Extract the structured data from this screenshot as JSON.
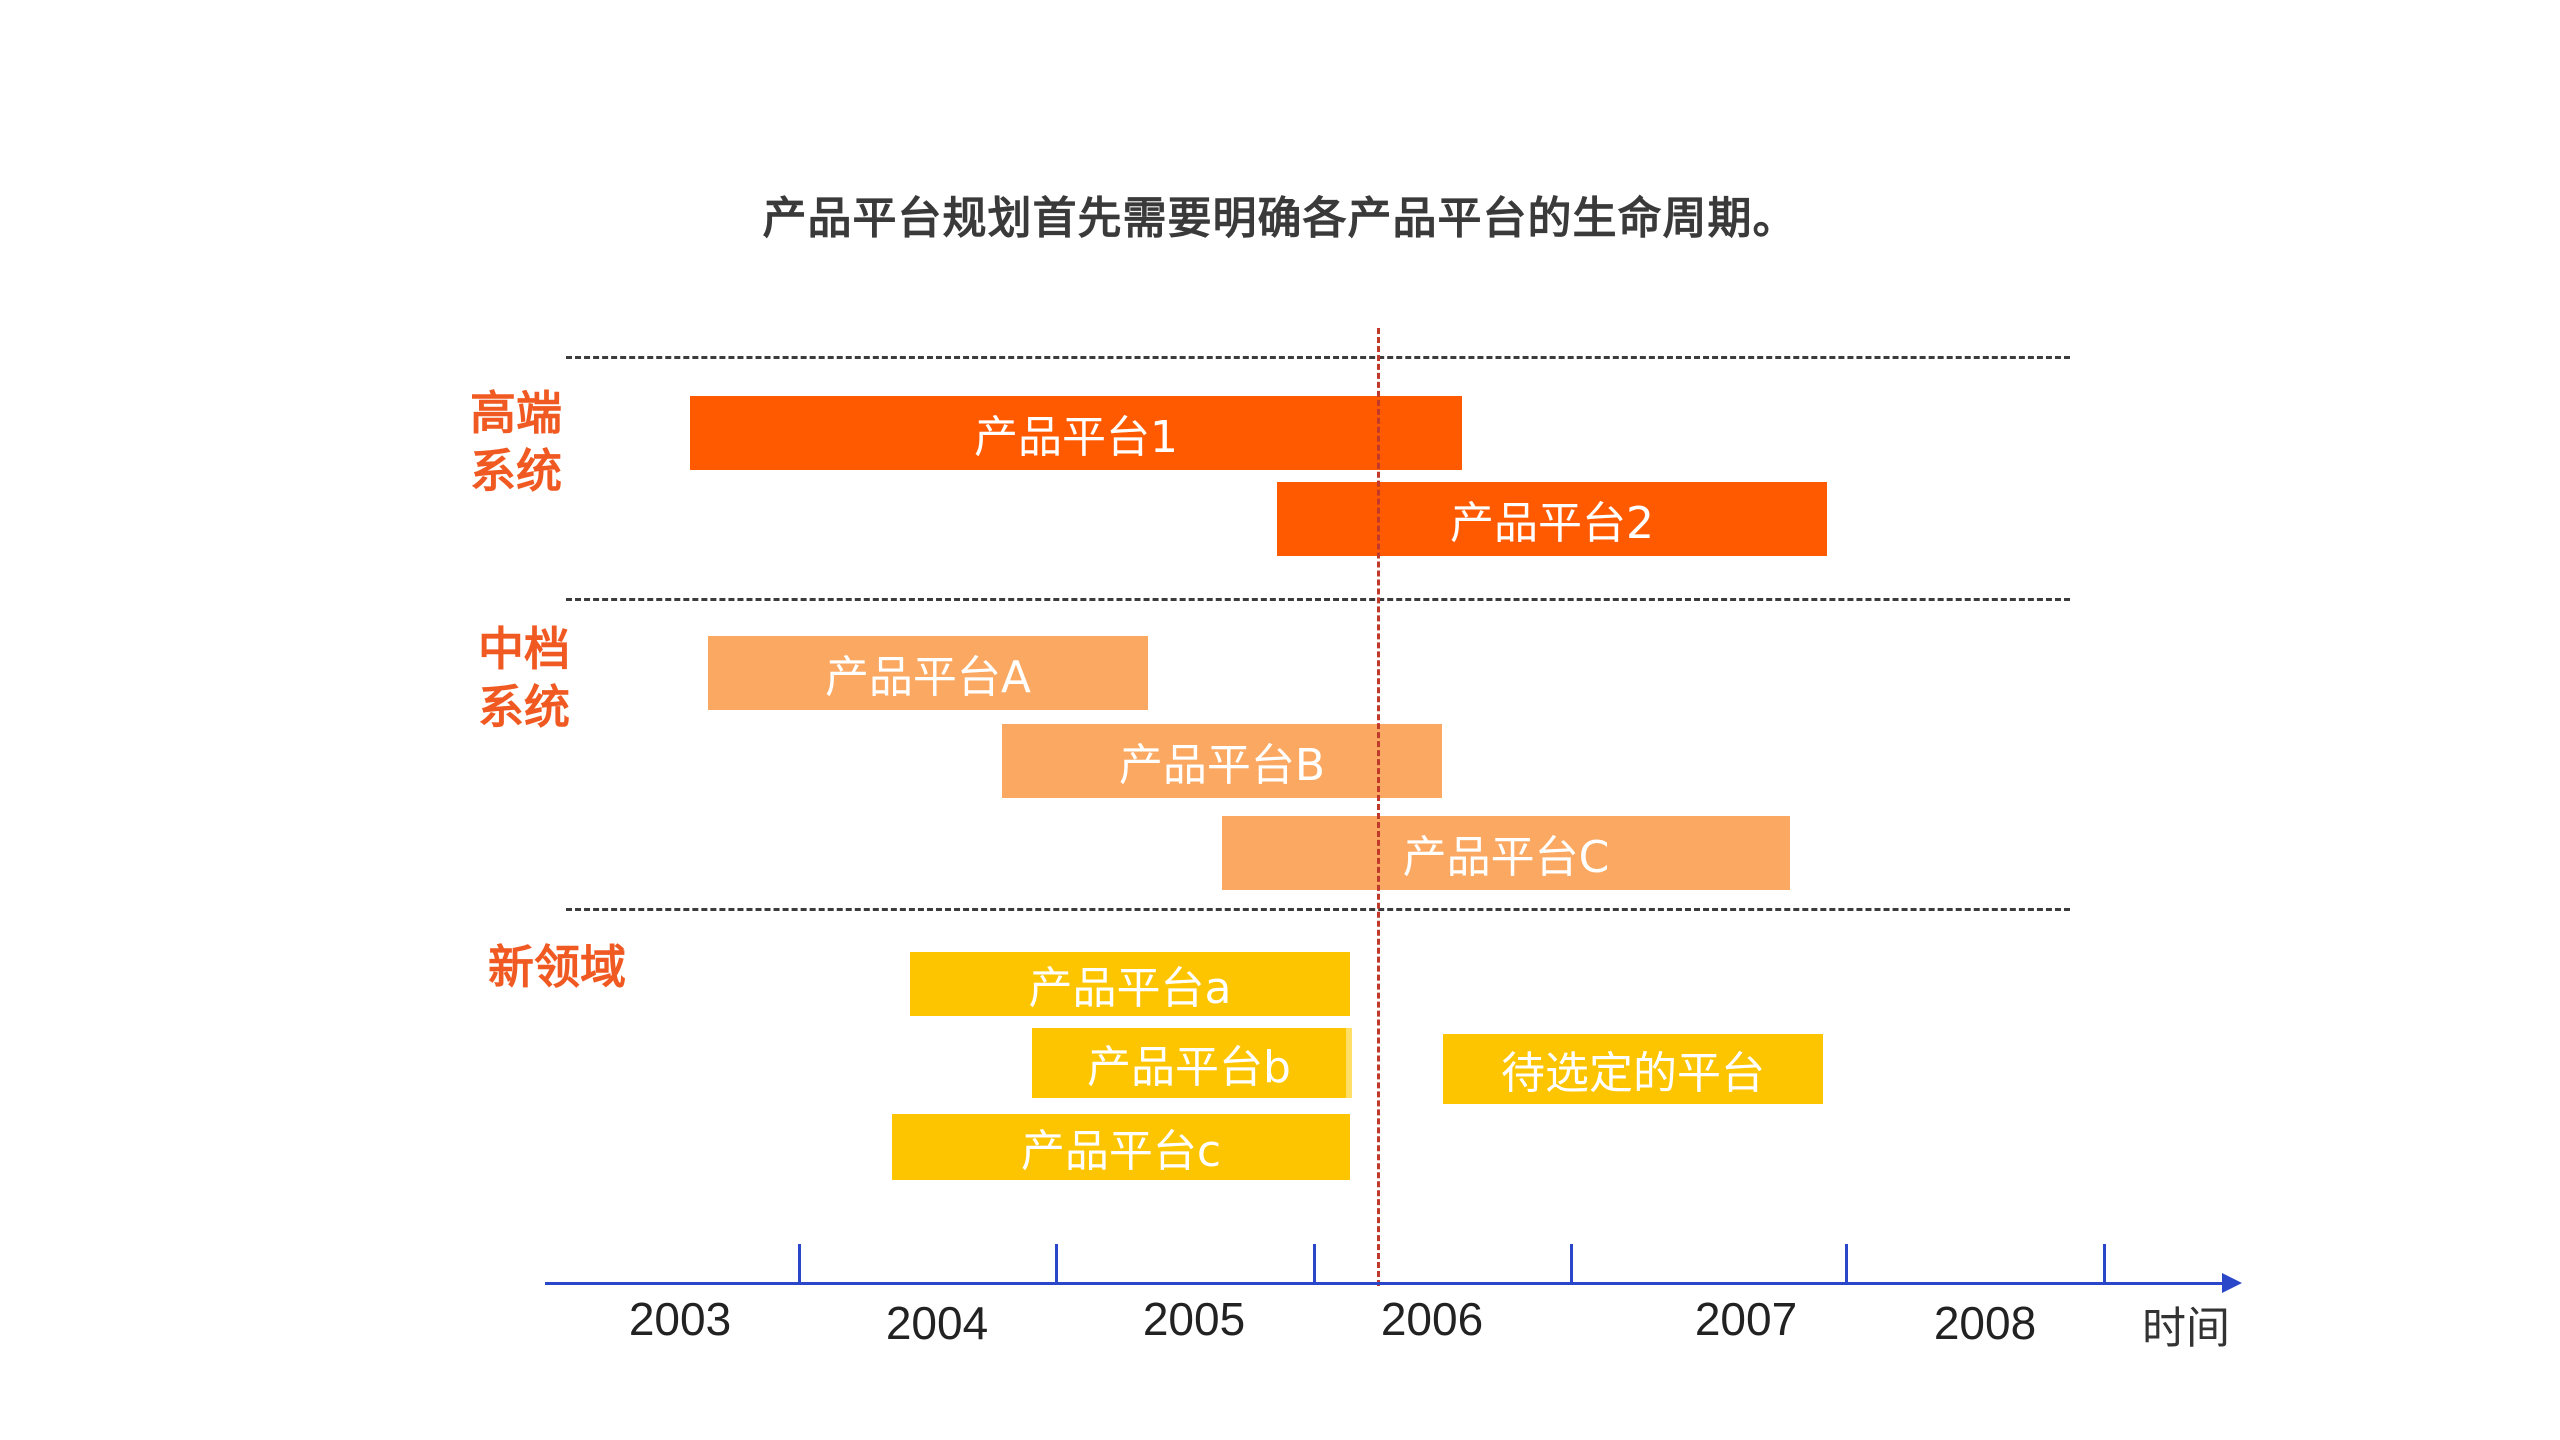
{
  "title": "产品平台规划首先需要明确各产品平台的生命周期。",
  "groups": [
    {
      "label": "高端\n系统",
      "color": "#f05a22"
    },
    {
      "label": "中档\n系统",
      "color": "#f05a22"
    },
    {
      "label": "新领域",
      "color": "#f05a22"
    }
  ],
  "platforms": [
    {
      "label": "产品平台1",
      "tier": "高端系统",
      "start": 2003.0,
      "end": 2006.0,
      "color": "#ff5a00"
    },
    {
      "label": "产品平台2",
      "tier": "高端系统",
      "start": 2005.6,
      "end": 2007.8,
      "color": "#ff5a00"
    },
    {
      "label": "产品平台A",
      "tier": "中档系统",
      "start": 2003.0,
      "end": 2004.8,
      "color": "#fba862"
    },
    {
      "label": "产品平台B",
      "tier": "中档系统",
      "start": 2004.2,
      "end": 2006.0,
      "color": "#fba862"
    },
    {
      "label": "产品平台C",
      "tier": "中档系统",
      "start": 2005.2,
      "end": 2007.6,
      "color": "#fba862"
    },
    {
      "label": "产品平台a",
      "tier": "新领域",
      "start": 2003.8,
      "end": 2005.5,
      "color": "#fdc400"
    },
    {
      "label": "产品平台b",
      "tier": "新领域",
      "start": 2004.3,
      "end": 2005.5,
      "color": "#fdc400"
    },
    {
      "label": "产品平台c",
      "tier": "新领域",
      "start": 2003.8,
      "end": 2005.5,
      "color": "#fdc400"
    },
    {
      "label": "待选定的平台",
      "tier": "新领域",
      "start": 2006.0,
      "end": 2007.8,
      "color": "#fdc400"
    }
  ],
  "axis": {
    "years": [
      "2003",
      "2004",
      "2005",
      "2006",
      "2007",
      "2008"
    ],
    "label": "时间",
    "color": "#2a46c9"
  },
  "current_marker_color": "#c0392b"
}
